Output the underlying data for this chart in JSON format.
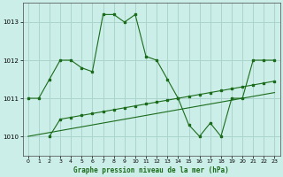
{
  "title": "Graphe pression niveau de la mer (hPa)",
  "bg_color": "#cceee8",
  "line_color": "#1a6b1a",
  "grid_color": "#aad4cc",
  "xlim": [
    -0.5,
    23.5
  ],
  "ylim": [
    1009.5,
    1013.5
  ],
  "yticks": [
    1010,
    1011,
    1012,
    1013
  ],
  "xticks": [
    0,
    1,
    2,
    3,
    4,
    5,
    6,
    7,
    8,
    9,
    10,
    11,
    12,
    13,
    14,
    15,
    16,
    17,
    18,
    19,
    20,
    21,
    22,
    23
  ],
  "series1_x": [
    0,
    1,
    2,
    3,
    4,
    5,
    6,
    7,
    8,
    9,
    10,
    11,
    12,
    13,
    14,
    15,
    16,
    17,
    18,
    19,
    20,
    21,
    22,
    23
  ],
  "series1_y": [
    1011.0,
    1011.0,
    1011.5,
    1012.0,
    1012.0,
    1011.8,
    1011.7,
    1013.2,
    1013.2,
    1013.0,
    1013.2,
    1012.1,
    1012.0,
    1011.5,
    1011.0,
    1010.3,
    1010.0,
    1010.35,
    1010.0,
    1011.0,
    1011.0,
    1012.0,
    1012.0,
    1012.0
  ],
  "series2_x": [
    2,
    3,
    4,
    5,
    6,
    7,
    8,
    9,
    10,
    11,
    12,
    13,
    14,
    15,
    16,
    17,
    18,
    19,
    20,
    21,
    22,
    23
  ],
  "series2_y": [
    1010.0,
    1010.45,
    1010.5,
    1010.55,
    1010.6,
    1010.65,
    1010.7,
    1010.75,
    1010.8,
    1010.85,
    1010.9,
    1010.95,
    1011.0,
    1011.05,
    1011.1,
    1011.15,
    1011.2,
    1011.25,
    1011.3,
    1011.35,
    1011.4,
    1011.45
  ],
  "series3_x": [
    0,
    1,
    2,
    3,
    4,
    5,
    6,
    7,
    8,
    9,
    10,
    11,
    12,
    13,
    14,
    15,
    16,
    17,
    18,
    19,
    20,
    21,
    22,
    23
  ],
  "series3_y": [
    1010.0,
    1010.05,
    1010.1,
    1010.15,
    1010.2,
    1010.25,
    1010.3,
    1010.35,
    1010.4,
    1010.45,
    1010.5,
    1010.55,
    1010.6,
    1010.65,
    1010.7,
    1010.75,
    1010.8,
    1010.85,
    1010.9,
    1010.95,
    1011.0,
    1011.05,
    1011.1,
    1011.15
  ]
}
